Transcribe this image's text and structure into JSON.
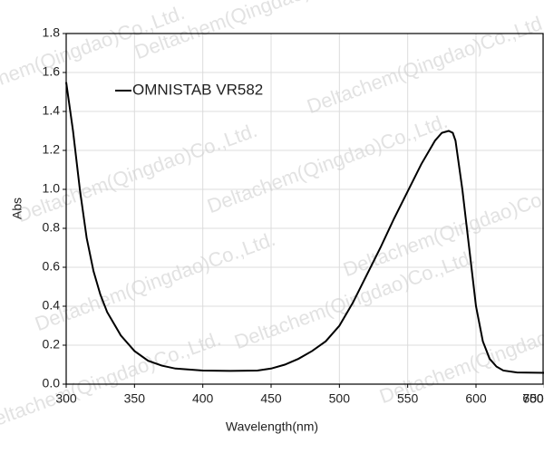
{
  "chart_data": {
    "type": "line",
    "xlabel": "Wavelength(nm)",
    "ylabel": "Abs",
    "watermark": "Deltachem(Qingdao)Co.,Ltd.",
    "x": [
      300,
      305,
      310,
      315,
      320,
      325,
      330,
      340,
      350,
      360,
      370,
      380,
      400,
      420,
      440,
      450,
      460,
      470,
      480,
      490,
      500,
      510,
      520,
      530,
      540,
      550,
      560,
      570,
      575,
      580,
      583,
      585,
      590,
      595,
      600,
      605,
      610,
      615,
      620,
      630,
      650,
      700,
      750
    ],
    "series": [
      {
        "name": "OMNISTAB VR582",
        "color": "#000000",
        "values": [
          1.55,
          1.3,
          1.0,
          0.75,
          0.58,
          0.46,
          0.37,
          0.25,
          0.17,
          0.12,
          0.095,
          0.08,
          0.07,
          0.068,
          0.07,
          0.08,
          0.1,
          0.13,
          0.17,
          0.22,
          0.3,
          0.42,
          0.56,
          0.7,
          0.85,
          0.99,
          1.13,
          1.25,
          1.29,
          1.3,
          1.29,
          1.25,
          1.0,
          0.7,
          0.4,
          0.22,
          0.13,
          0.09,
          0.07,
          0.06,
          0.058,
          0.055,
          0.053
        ]
      }
    ],
    "xlim": [
      300,
      750
    ],
    "xticks": [
      300,
      350,
      400,
      450,
      500,
      550,
      600,
      650,
      700,
      750
    ],
    "ylim": [
      0,
      1.8
    ],
    "yticks": [
      {
        "value": 0,
        "label": "0.0"
      },
      0.2,
      0.4,
      0.6,
      0.8,
      {
        "value": 1,
        "label": "1.0"
      },
      1.2,
      1.4,
      1.6,
      1.8
    ],
    "grid": true,
    "legend": "upper left"
  }
}
